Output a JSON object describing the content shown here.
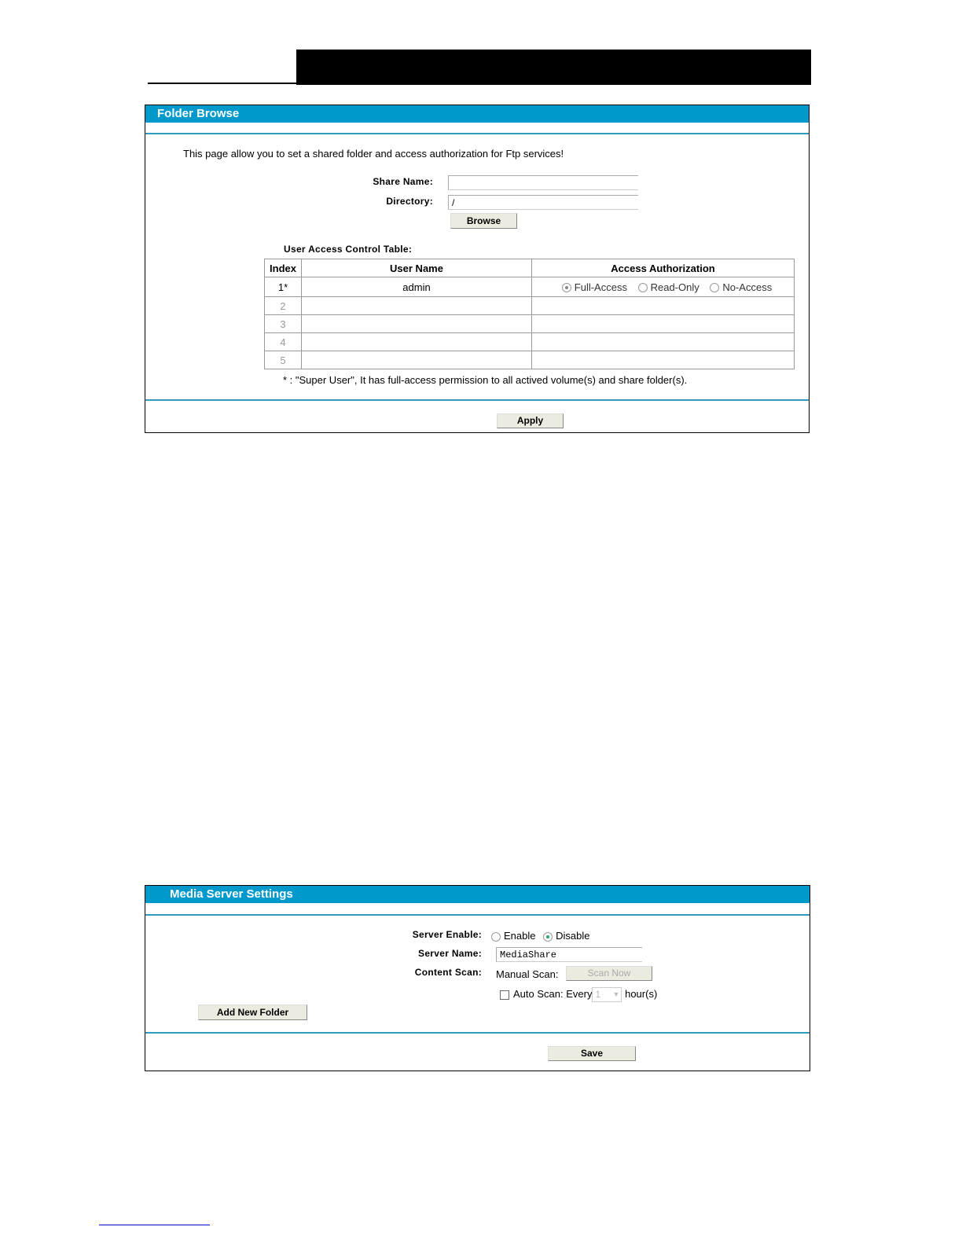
{
  "folder_browse": {
    "title": "Folder Browse",
    "intro": "This page allow you to set a shared folder and access authorization for Ftp services!",
    "share_name_label": "Share Name:",
    "share_name_value": "",
    "directory_label": "Directory:",
    "directory_value": "/",
    "browse_label": "Browse",
    "table_title": "User Access Control Table:",
    "columns": [
      "Index",
      "User Name",
      "Access Authorization"
    ],
    "rows": [
      {
        "index": "1*",
        "user": "admin"
      },
      {
        "index": "2",
        "user": ""
      },
      {
        "index": "3",
        "user": ""
      },
      {
        "index": "4",
        "user": ""
      },
      {
        "index": "5",
        "user": ""
      }
    ],
    "access_options": [
      "Full-Access",
      "Read-Only",
      "No-Access"
    ],
    "access_selected": "Full-Access",
    "footnote": "* : \"Super User\", It has full-access permission to all actived volume(s) and share folder(s).",
    "apply_label": "Apply"
  },
  "media_server": {
    "title": "Media Server Settings",
    "server_enable_label": "Server Enable:",
    "enable_label": "Enable",
    "disable_label": "Disable",
    "server_enable_selected": "Disable",
    "server_name_label": "Server Name:",
    "server_name_value": "MediaShare",
    "content_scan_label": "Content Scan:",
    "manual_scan_label": "Manual Scan:",
    "scan_now_label": "Scan Now",
    "auto_scan_label": "Auto Scan:",
    "auto_scan_checked": false,
    "every_label": "Every",
    "interval_value": "1",
    "hours_label": "hour(s)",
    "add_folder_label": "Add New Folder",
    "save_label": "Save"
  },
  "colors": {
    "header": "#0099cc",
    "divider": "#3399bb",
    "button": "#ecebe0"
  }
}
